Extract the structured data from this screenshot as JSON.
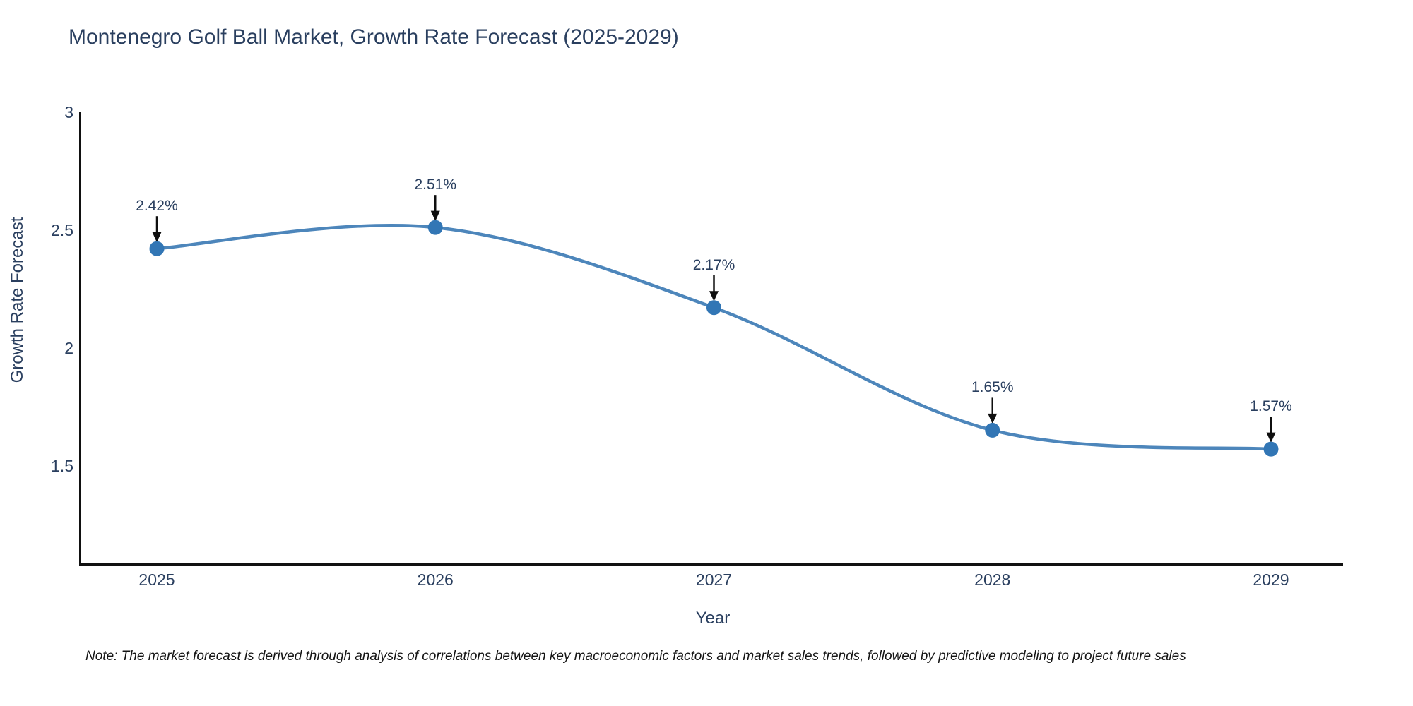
{
  "page": {
    "note": "Note: The market forecast is derived through analysis of correlations between key macroeconomic factors and market sales trends, followed by predictive modeling to project future sales"
  },
  "chart_data": {
    "type": "line",
    "title": "Montenegro Golf Ball Market, Growth Rate Forecast (2025-2029)",
    "xlabel": "Year",
    "ylabel": "Growth Rate Forecast",
    "x": [
      2025,
      2026,
      2027,
      2028,
      2029
    ],
    "values": [
      2.42,
      2.51,
      2.17,
      1.65,
      1.57
    ],
    "point_labels": [
      "2.42%",
      "2.51%",
      "2.17%",
      "1.65%",
      "1.57%"
    ],
    "x_tick_labels": [
      "2025",
      "2026",
      "2027",
      "2028",
      "2029"
    ],
    "y_ticks": {
      "values": [
        3,
        2.5,
        2,
        1.5
      ],
      "labels": [
        "3",
        "2.5",
        "2",
        "1.5"
      ]
    },
    "ylim": [
      1.08,
      3.0
    ],
    "line_shape": "spline",
    "grid": false,
    "legend": false,
    "annotations_have_arrows": true,
    "colors": {
      "line": "#4d86bb",
      "marker": "#3276b5",
      "arrow": "#0f0f0f",
      "axis": "#111111",
      "text": "#2a3f5f"
    }
  }
}
